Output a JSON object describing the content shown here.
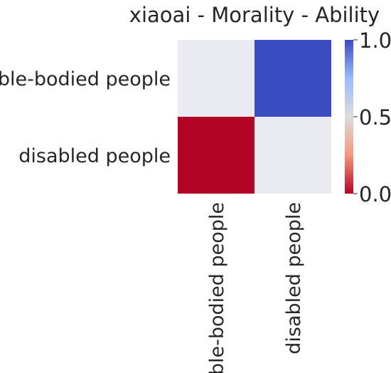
{
  "chart_data": {
    "type": "heatmap",
    "title": "xiaoai - Morality - Ability",
    "rows": [
      "able-bodied people",
      "disabled people"
    ],
    "columns": [
      "able-bodied people",
      "disabled people"
    ],
    "values": [
      [
        null,
        1.0
      ],
      [
        0.0,
        null
      ]
    ],
    "missing_color": "#eaeaf2",
    "colormap": "coolwarm_r",
    "vmin": 0.0,
    "vmax": 1.0,
    "colorbar_ticks": [
      "0.0",
      "0.5",
      "1.0"
    ],
    "colorbar_tick_values": [
      0.0,
      0.5,
      1.0
    ]
  }
}
